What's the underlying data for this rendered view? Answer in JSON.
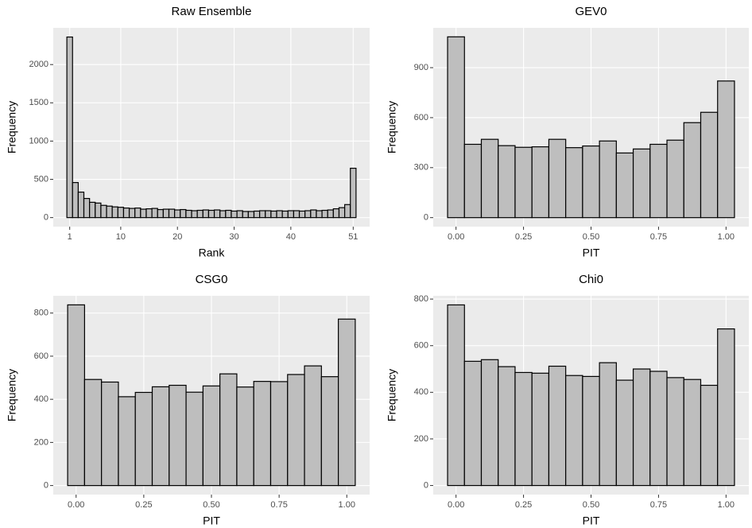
{
  "chart_data": [
    {
      "type": "histogram",
      "title": "Raw Ensemble",
      "xlabel": "Rank",
      "ylabel": "Frequency",
      "bins": [
        0.5,
        1.5,
        2.5,
        3.5,
        4.5,
        5.5,
        6.5,
        7.5,
        8.5,
        9.5,
        10.5,
        11.5,
        12.5,
        13.5,
        14.5,
        15.5,
        16.5,
        17.5,
        18.5,
        19.5,
        20.5,
        21.5,
        22.5,
        23.5,
        24.5,
        25.5,
        26.5,
        27.5,
        28.5,
        29.5,
        30.5,
        31.5,
        32.5,
        33.5,
        34.5,
        35.5,
        36.5,
        37.5,
        38.5,
        39.5,
        40.5,
        41.5,
        42.5,
        43.5,
        44.5,
        45.5,
        46.5,
        47.5,
        48.5,
        49.5,
        50.5,
        51.5
      ],
      "values": [
        2360,
        458,
        333,
        250,
        200,
        190,
        160,
        150,
        140,
        135,
        125,
        120,
        125,
        110,
        115,
        120,
        105,
        110,
        110,
        100,
        105,
        95,
        90,
        95,
        100,
        95,
        100,
        90,
        95,
        85,
        90,
        80,
        80,
        85,
        90,
        90,
        85,
        90,
        85,
        90,
        90,
        85,
        90,
        100,
        90,
        95,
        100,
        115,
        130,
        170,
        645
      ],
      "xlim": [
        -1.9,
        53.9
      ],
      "ylim": [
        -118,
        2480
      ],
      "xticks": [
        1,
        10,
        20,
        30,
        40,
        51
      ],
      "yticks": [
        0,
        500,
        1000,
        1500,
        2000
      ],
      "color": "#bebebe",
      "edgecolor": "#000000",
      "grid": true
    },
    {
      "type": "histogram",
      "title": "GEV0",
      "xlabel": "PIT",
      "ylabel": "Frequency",
      "bins": [
        -0.03125,
        0.03125,
        0.09375,
        0.15625,
        0.21875,
        0.28125,
        0.34375,
        0.40625,
        0.46875,
        0.53125,
        0.59375,
        0.65625,
        0.71875,
        0.78125,
        0.84375,
        0.90625,
        0.96875,
        1.03125
      ],
      "values": [
        1085,
        440,
        470,
        432,
        422,
        425,
        470,
        420,
        430,
        460,
        388,
        412,
        440,
        465,
        570,
        632,
        820
      ],
      "xlim": [
        -0.0844,
        1.0844
      ],
      "ylim": [
        -54,
        1139
      ],
      "xticks": [
        {
          "value": 0,
          "label": "0.00"
        },
        {
          "value": 0.25,
          "label": "0.25"
        },
        {
          "value": 0.5,
          "label": "0.50"
        },
        {
          "value": 0.75,
          "label": "0.75"
        },
        {
          "value": 1,
          "label": "1.00"
        }
      ],
      "yticks": [
        0,
        300,
        600,
        900
      ],
      "color": "#bebebe",
      "edgecolor": "#000000",
      "grid": true
    },
    {
      "type": "histogram",
      "title": "CSG0",
      "xlabel": "PIT",
      "ylabel": "Frequency",
      "bins": [
        -0.03125,
        0.03125,
        0.09375,
        0.15625,
        0.21875,
        0.28125,
        0.34375,
        0.40625,
        0.46875,
        0.53125,
        0.59375,
        0.65625,
        0.71875,
        0.78125,
        0.84375,
        0.90625,
        0.96875,
        1.03125
      ],
      "values": [
        838,
        492,
        480,
        412,
        432,
        458,
        465,
        433,
        462,
        518,
        457,
        483,
        482,
        515,
        555,
        505,
        772
      ],
      "xlim": [
        -0.0844,
        1.0844
      ],
      "ylim": [
        -42,
        880
      ],
      "xticks": [
        {
          "value": 0,
          "label": "0.00"
        },
        {
          "value": 0.25,
          "label": "0.25"
        },
        {
          "value": 0.5,
          "label": "0.50"
        },
        {
          "value": 0.75,
          "label": "0.75"
        },
        {
          "value": 1,
          "label": "1.00"
        }
      ],
      "yticks": [
        0,
        200,
        400,
        600,
        800
      ],
      "color": "#bebebe",
      "edgecolor": "#000000",
      "grid": true
    },
    {
      "type": "histogram",
      "title": "Chi0",
      "xlabel": "PIT",
      "ylabel": "Frequency",
      "bins": [
        -0.03125,
        0.03125,
        0.09375,
        0.15625,
        0.21875,
        0.28125,
        0.34375,
        0.40625,
        0.46875,
        0.53125,
        0.59375,
        0.65625,
        0.71875,
        0.78125,
        0.84375,
        0.90625,
        0.96875,
        1.03125
      ],
      "values": [
        775,
        533,
        540,
        510,
        485,
        482,
        512,
        472,
        468,
        527,
        452,
        500,
        490,
        463,
        455,
        430,
        672
      ],
      "xlim": [
        -0.0844,
        1.0844
      ],
      "ylim": [
        -39,
        814
      ],
      "xticks": [
        {
          "value": 0,
          "label": "0.00"
        },
        {
          "value": 0.25,
          "label": "0.25"
        },
        {
          "value": 0.5,
          "label": "0.50"
        },
        {
          "value": 0.75,
          "label": "0.75"
        },
        {
          "value": 1,
          "label": "1.00"
        }
      ],
      "yticks": [
        0,
        200,
        400,
        600,
        800
      ],
      "color": "#bebebe",
      "edgecolor": "#000000",
      "grid": true
    }
  ]
}
